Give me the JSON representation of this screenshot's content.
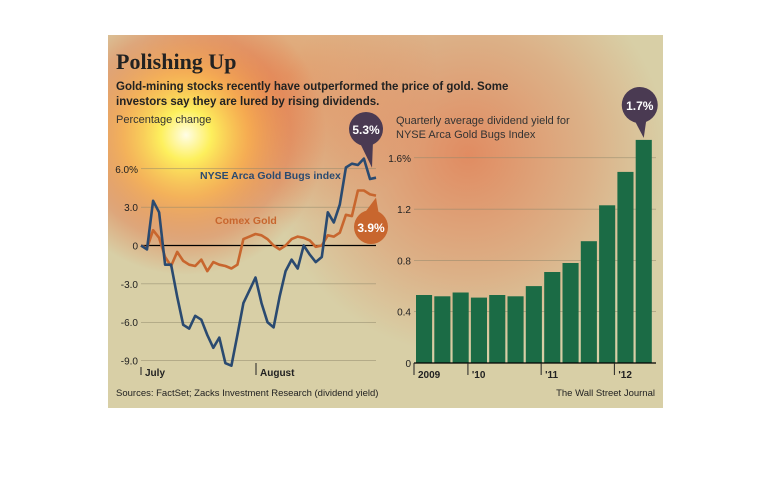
{
  "header": {
    "title": "Polishing Up",
    "subtitle": "Gold-mining stocks recently have outperformed the price of gold. Some investors say they are lured by rising dividends."
  },
  "footer": {
    "sources": "Sources: FactSet; Zacks Investment Research (dividend yield)",
    "credit": "The Wall Street Journal"
  },
  "colors": {
    "background": "#d8cfa6",
    "gold_bugs_line": "#2a4a70",
    "comex_line": "#c8662e",
    "bars": "#1b6b45",
    "callout_dark": "#4a3a52",
    "callout_orange": "#c8662e"
  },
  "chart_data": [
    {
      "type": "line",
      "ylabel": "Percentage change",
      "ylim": [
        -9.5,
        7.0
      ],
      "yticks": [
        6.0,
        3.0,
        0,
        -3.0,
        -6.0,
        -9.0
      ],
      "ytick_labels": [
        "6.0%",
        "3.0",
        "0",
        "-3.0",
        "-6.0",
        "-9.0"
      ],
      "x_labels": [
        "July",
        "August"
      ],
      "grid": true,
      "n_points": 40,
      "series": [
        {
          "name": "NYSE Arca Gold Bugs index",
          "end_label": "5.3%",
          "values": [
            0,
            -0.3,
            3.5,
            2.6,
            -1.5,
            -1.5,
            -4.0,
            -6.2,
            -6.5,
            -5.5,
            -5.8,
            -7.0,
            -8.0,
            -7.2,
            -9.2,
            -9.4,
            -7.0,
            -4.5,
            -3.5,
            -2.5,
            -4.5,
            -6.0,
            -6.4,
            -4.0,
            -2.0,
            -1.1,
            -1.8,
            0,
            -0.7,
            -1.3,
            -0.9,
            2.6,
            1.8,
            3.2,
            6.1,
            6.4,
            6.3,
            6.8,
            5.2,
            5.3
          ]
        },
        {
          "name": "Comex Gold",
          "end_label": "3.9%",
          "values": [
            0,
            -0.2,
            1.2,
            0.6,
            -0.9,
            -1.6,
            -0.5,
            -1.2,
            -1.5,
            -1.6,
            -1.1,
            -2.0,
            -1.3,
            -1.5,
            -1.6,
            -1.8,
            -1.5,
            0.5,
            0.7,
            0.9,
            0.8,
            0.5,
            0.0,
            -0.3,
            0.0,
            0.5,
            0.7,
            0.6,
            0.4,
            -0.1,
            0.0,
            0.8,
            0.7,
            1.0,
            2.4,
            2.3,
            4.3,
            4.3,
            4.0,
            3.9
          ]
        }
      ]
    },
    {
      "type": "bar",
      "title": "Quarterly average dividend yield for NYSE Arca Gold Bugs Index",
      "ylim": [
        0,
        1.7
      ],
      "yticks": [
        0,
        0.4,
        0.8,
        1.2,
        1.6
      ],
      "ytick_labels": [
        "0",
        "0.4",
        "0.8",
        "1.2",
        "1.6%"
      ],
      "x_labels": [
        "2009",
        "'10",
        "'11",
        "'12"
      ],
      "end_label": "1.7%",
      "values": [
        0.53,
        0.52,
        0.55,
        0.51,
        0.53,
        0.52,
        0.6,
        0.71,
        0.78,
        0.95,
        1.23,
        1.49,
        1.74
      ],
      "grid": true
    }
  ]
}
